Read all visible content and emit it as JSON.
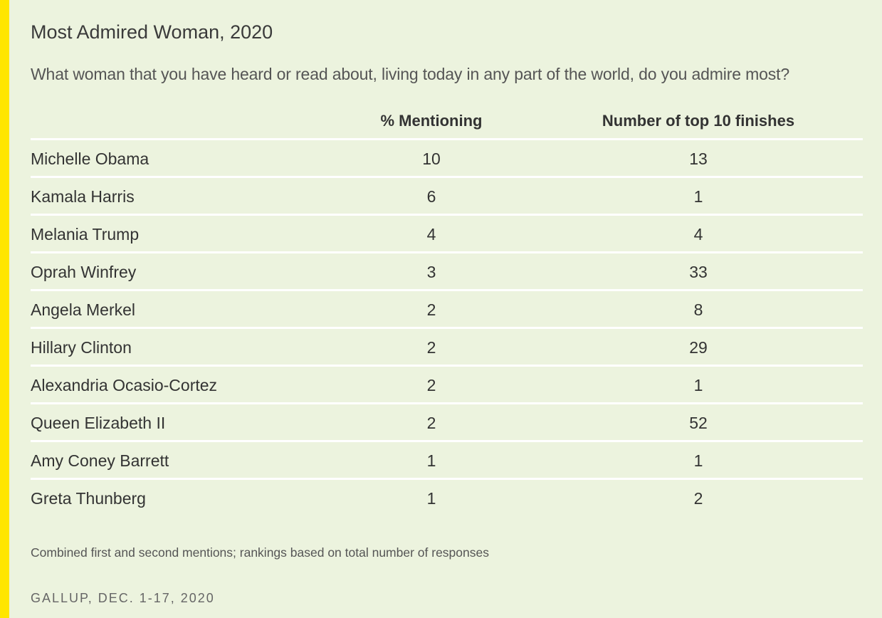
{
  "title": "Most Admired Woman, 2020",
  "subtitle": "What woman that you have heard or read about, living today in any part of the world, do you admire most?",
  "note": "Combined first and second mentions; rankings based on total number of responses",
  "source": "GALLUP, DEC. 1-17, 2020",
  "colors": {
    "background": "#ecf3de",
    "accent_bar": "#ffe600",
    "row_divider": "#ffffff",
    "text": "#333333"
  },
  "chart_data": {
    "type": "table",
    "title": "Most Admired Woman, 2020",
    "subtitle": "What woman that you have heard or read about, living today in any part of the world, do you admire most?",
    "columns": [
      "",
      "% Mentioning",
      "Number of top 10 finishes"
    ],
    "rows": [
      {
        "name": "Michelle Obama",
        "pct": "10",
        "top10": "13"
      },
      {
        "name": "Kamala Harris",
        "pct": "6",
        "top10": "1"
      },
      {
        "name": "Melania Trump",
        "pct": "4",
        "top10": "4"
      },
      {
        "name": "Oprah Winfrey",
        "pct": "3",
        "top10": "33"
      },
      {
        "name": "Angela Merkel",
        "pct": "2",
        "top10": "8"
      },
      {
        "name": "Hillary Clinton",
        "pct": "2",
        "top10": "29"
      },
      {
        "name": "Alexandria Ocasio-Cortez",
        "pct": "2",
        "top10": "1"
      },
      {
        "name": "Queen Elizabeth II",
        "pct": "2",
        "top10": "52"
      },
      {
        "name": "Amy Coney Barrett",
        "pct": "1",
        "top10": "1"
      },
      {
        "name": "Greta Thunberg",
        "pct": "1",
        "top10": "2"
      }
    ],
    "note": "Combined first and second mentions; rankings based on total number of responses",
    "source": "GALLUP, DEC. 1-17, 2020"
  }
}
